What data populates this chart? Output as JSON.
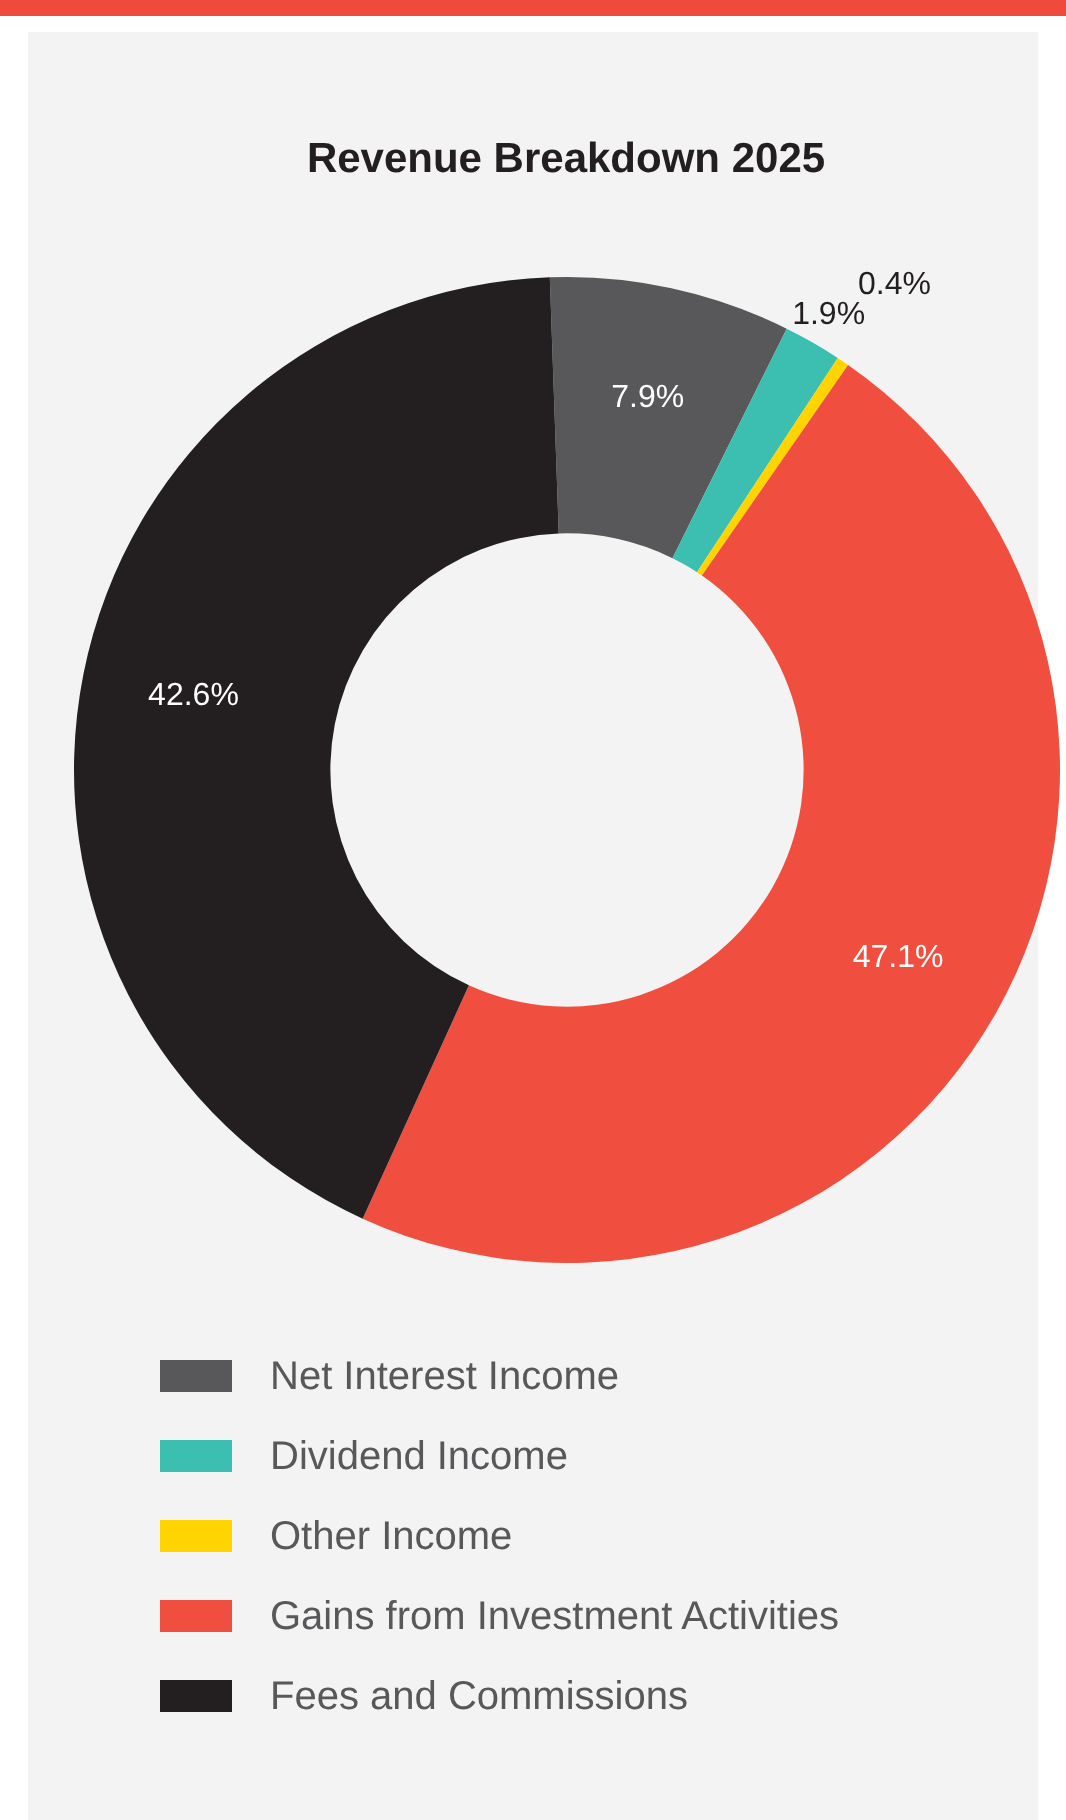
{
  "chart_data": {
    "type": "donut",
    "title": "Revenue Breakdown 2025",
    "categories": [
      "Net Interest Income",
      "Dividend Income",
      "Other Income",
      "Gains from Investment Activities",
      "Fees and Commissions"
    ],
    "values": [
      7.9,
      1.9,
      0.4,
      47.1,
      42.6
    ],
    "colors": [
      "#58585a",
      "#3cbfb0",
      "#ffd400",
      "#f04e3e",
      "#231f20"
    ],
    "value_labels": [
      "7.9%",
      "1.9%",
      "0.4%",
      "47.1%",
      "42.6%"
    ],
    "legend": "bottom"
  }
}
